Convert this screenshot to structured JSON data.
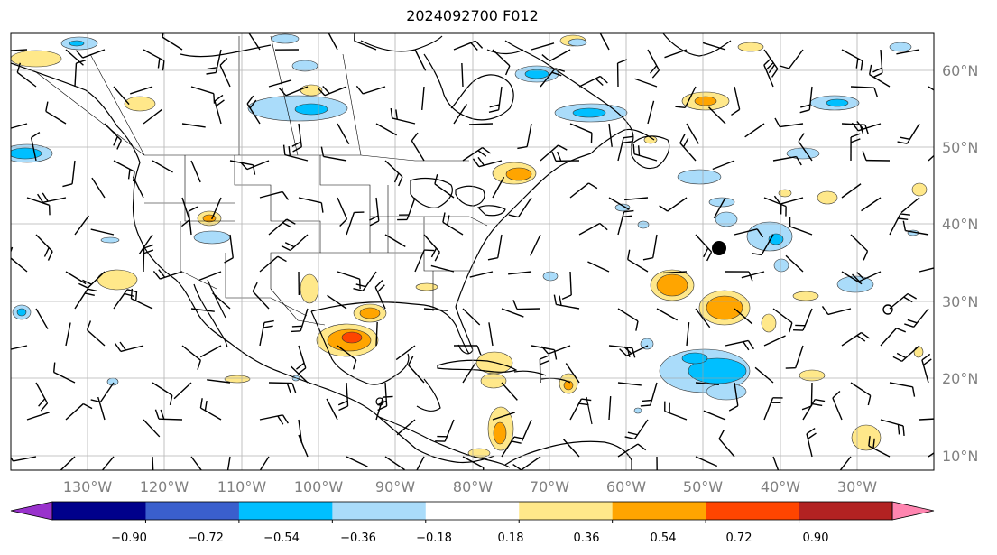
{
  "title": "2024092700 F012",
  "lon_labels": [
    "130°W",
    "120°W",
    "110°W",
    "100°W",
    "90°W",
    "80°W",
    "70°W",
    "60°W",
    "50°W",
    "40°W",
    "30°W"
  ],
  "lat_labels": [
    "60°N",
    "50°N",
    "40°N",
    "30°N",
    "20°N",
    "10°N"
  ],
  "colorbar": {
    "ticks": [
      "−0.90",
      "−0.72",
      "−0.54",
      "−0.36",
      "−0.18",
      "0.18",
      "0.36",
      "0.54",
      "0.72",
      "0.90"
    ],
    "colors": [
      "#9932cc",
      "#00008b",
      "#3a5fcd",
      "#00bfff",
      "#aadcfa",
      "#ffffff",
      "#ffe88a",
      "#ffa500",
      "#ff4500",
      "#b22222",
      "#ff85b0"
    ]
  },
  "map": {
    "projection": "plate-carree",
    "lon_range": [
      -141,
      -21
    ],
    "lat_range": [
      8,
      65
    ],
    "gridlines": true,
    "storm_marker": "filled-circle"
  }
}
